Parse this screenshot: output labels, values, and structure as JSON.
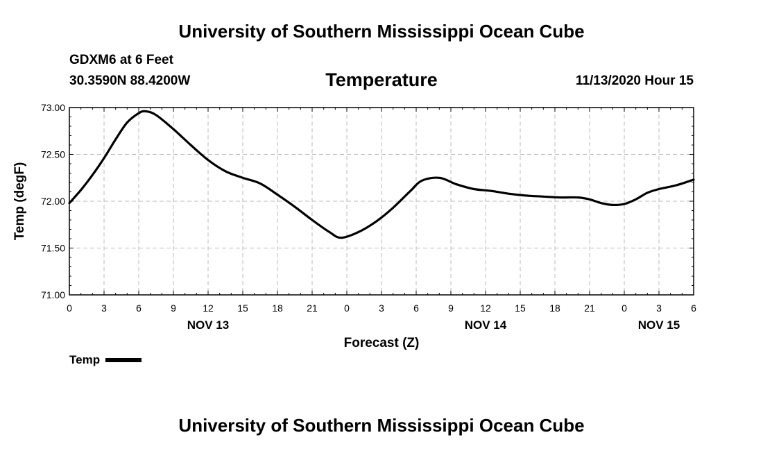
{
  "header": {
    "banner": "University of Southern Mississippi Ocean Cube",
    "station": "GDXM6 at 6 Feet",
    "coords": "30.3590N 88.4200W",
    "datetime": "11/13/2020 Hour 15"
  },
  "footer": {
    "banner": "University of Southern Mississippi Ocean Cube"
  },
  "legend": {
    "label": "Temp",
    "color": "#000000"
  },
  "chart_data": {
    "type": "line",
    "title": "Temperature",
    "xlabel": "Forecast (Z)",
    "ylabel": "Temp (degF)",
    "xlim": [
      0,
      54
    ],
    "ylim": [
      71.0,
      73.0
    ],
    "grid": true,
    "legend_position": "bottom-left",
    "x_ticks": [
      {
        "x": 0,
        "label": "0"
      },
      {
        "x": 3,
        "label": "3"
      },
      {
        "x": 6,
        "label": "6"
      },
      {
        "x": 9,
        "label": "9"
      },
      {
        "x": 12,
        "label": "12"
      },
      {
        "x": 15,
        "label": "15"
      },
      {
        "x": 18,
        "label": "18"
      },
      {
        "x": 21,
        "label": "21"
      },
      {
        "x": 24,
        "label": "0"
      },
      {
        "x": 27,
        "label": "3"
      },
      {
        "x": 30,
        "label": "6"
      },
      {
        "x": 33,
        "label": "9"
      },
      {
        "x": 36,
        "label": "12"
      },
      {
        "x": 39,
        "label": "15"
      },
      {
        "x": 42,
        "label": "18"
      },
      {
        "x": 45,
        "label": "21"
      },
      {
        "x": 48,
        "label": "0"
      },
      {
        "x": 51,
        "label": "3"
      },
      {
        "x": 54,
        "label": "6"
      }
    ],
    "date_labels": [
      {
        "x": 12,
        "label": "NOV 13"
      },
      {
        "x": 36,
        "label": "NOV 14"
      },
      {
        "x": 51,
        "label": "NOV 15"
      }
    ],
    "y_ticks": [
      {
        "y": 71.0,
        "label": "71.00"
      },
      {
        "y": 71.5,
        "label": "71.50"
      },
      {
        "y": 72.0,
        "label": "72.00"
      },
      {
        "y": 72.5,
        "label": "72.50"
      },
      {
        "y": 73.0,
        "label": "73.00"
      }
    ],
    "series": [
      {
        "name": "Temp",
        "x": [
          0,
          1,
          2,
          3,
          4,
          5,
          6,
          6.6,
          7.5,
          9,
          10.5,
          12,
          13.5,
          15,
          16.5,
          18,
          19.5,
          21,
          22.5,
          23.5,
          25,
          26.5,
          28,
          29.5,
          30.5,
          32,
          33.5,
          35,
          36.5,
          38,
          39.5,
          41,
          42.5,
          44,
          45,
          46,
          47,
          48,
          49,
          50,
          51,
          52.5,
          54
        ],
        "y": [
          71.98,
          72.12,
          72.28,
          72.46,
          72.66,
          72.84,
          72.94,
          72.96,
          72.92,
          72.77,
          72.6,
          72.44,
          72.32,
          72.25,
          72.19,
          72.07,
          71.94,
          71.8,
          71.67,
          71.61,
          71.67,
          71.78,
          71.93,
          72.11,
          72.22,
          72.25,
          72.18,
          72.13,
          72.11,
          72.08,
          72.06,
          72.05,
          72.04,
          72.04,
          72.02,
          71.98,
          71.96,
          71.97,
          72.02,
          72.09,
          72.13,
          72.17,
          72.23
        ]
      }
    ]
  }
}
